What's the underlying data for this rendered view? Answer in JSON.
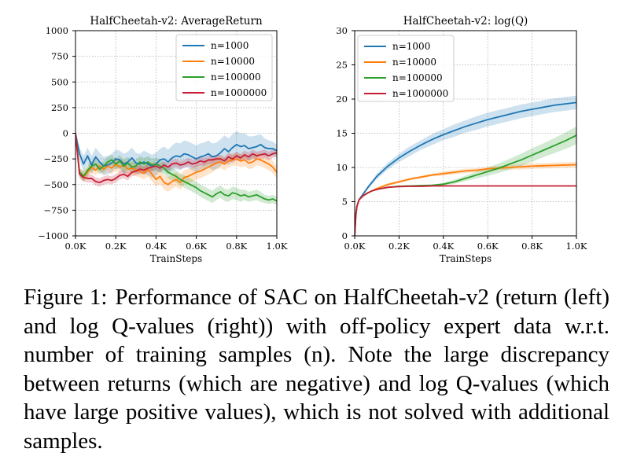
{
  "chart_data": [
    {
      "type": "line",
      "title": "HalfCheetah-v2: AverageReturn",
      "xlabel": "TrainSteps",
      "ylabel": "",
      "xlim": [
        0,
        1000
      ],
      "ylim": [
        -1000,
        1000
      ],
      "xticks": [
        0,
        200,
        400,
        600,
        800,
        1000
      ],
      "xtick_labels": [
        "0.0K",
        "0.2K",
        "0.4K",
        "0.6K",
        "0.8K",
        "1.0K"
      ],
      "yticks": [
        -1000,
        -750,
        -500,
        -250,
        0,
        250,
        500,
        750,
        1000
      ],
      "ytick_labels": [
        "−1000",
        "−750",
        "−500",
        "−250",
        "0",
        "250",
        "500",
        "750",
        "1000"
      ],
      "grid": true,
      "legend": "top-right",
      "series": [
        {
          "name": "n=1000",
          "color": "#1f77b4",
          "x": [
            0,
            20,
            40,
            60,
            80,
            100,
            120,
            140,
            160,
            180,
            200,
            220,
            240,
            260,
            280,
            300,
            320,
            340,
            360,
            380,
            400,
            420,
            440,
            460,
            480,
            500,
            520,
            540,
            560,
            580,
            600,
            620,
            640,
            660,
            680,
            700,
            720,
            740,
            760,
            780,
            800,
            820,
            840,
            860,
            880,
            900,
            920,
            940,
            960,
            980,
            1000
          ],
          "y": [
            0,
            -200,
            -300,
            -220,
            -310,
            -230,
            -280,
            -320,
            -310,
            -290,
            -250,
            -260,
            -300,
            -280,
            -240,
            -290,
            -300,
            -280,
            -300,
            -320,
            -300,
            -260,
            -250,
            -280,
            -240,
            -220,
            -230,
            -200,
            -210,
            -230,
            -250,
            -230,
            -220,
            -200,
            -230,
            -220,
            -190,
            -150,
            -180,
            -140,
            -110,
            -130,
            -120,
            -150,
            -140,
            -130,
            -110,
            -140,
            -150,
            -150,
            -170
          ],
          "band": [
            0,
            60,
            80,
            80,
            90,
            90,
            90,
            90,
            90,
            90,
            90,
            90,
            100,
            100,
            100,
            100,
            100,
            110,
            110,
            110,
            110,
            110,
            120,
            120,
            120,
            130,
            130,
            130,
            130,
            130,
            130,
            130,
            130,
            130,
            130,
            130,
            130,
            130,
            130,
            130,
            130,
            130,
            120,
            120,
            110,
            110,
            100,
            90,
            80,
            70,
            60
          ]
        },
        {
          "name": "n=10000",
          "color": "#ff7f0e",
          "x": [
            0,
            20,
            40,
            60,
            80,
            100,
            120,
            140,
            160,
            180,
            200,
            220,
            240,
            260,
            280,
            300,
            320,
            340,
            360,
            380,
            400,
            420,
            440,
            460,
            480,
            500,
            520,
            540,
            560,
            580,
            600,
            620,
            640,
            660,
            680,
            700,
            720,
            740,
            760,
            780,
            800,
            820,
            840,
            860,
            880,
            900,
            920,
            940,
            960,
            980,
            1000
          ],
          "y": [
            0,
            -380,
            -420,
            -380,
            -330,
            -360,
            -320,
            -350,
            -320,
            -340,
            -300,
            -330,
            -310,
            -350,
            -340,
            -360,
            -370,
            -390,
            -350,
            -400,
            -450,
            -420,
            -480,
            -500,
            -470,
            -450,
            -480,
            -430,
            -420,
            -400,
            -380,
            -370,
            -350,
            -330,
            -310,
            -290,
            -280,
            -300,
            -270,
            -260,
            -250,
            -270,
            -260,
            -290,
            -280,
            -250,
            -260,
            -280,
            -300,
            -330,
            -380
          ],
          "band": [
            0,
            40,
            50,
            50,
            50,
            50,
            50,
            50,
            50,
            60,
            60,
            60,
            60,
            60,
            60,
            60,
            60,
            60,
            70,
            70,
            70,
            70,
            70,
            70,
            70,
            70,
            70,
            70,
            70,
            70,
            70,
            70,
            70,
            70,
            70,
            60,
            60,
            60,
            60,
            60,
            60,
            60,
            60,
            60,
            60,
            60,
            60,
            60,
            60,
            60,
            60
          ]
        },
        {
          "name": "n=100000",
          "color": "#2ca02c",
          "x": [
            0,
            20,
            40,
            60,
            80,
            100,
            120,
            140,
            160,
            180,
            200,
            220,
            240,
            260,
            280,
            300,
            320,
            340,
            360,
            380,
            400,
            420,
            440,
            460,
            480,
            500,
            520,
            540,
            560,
            580,
            600,
            620,
            640,
            660,
            680,
            700,
            720,
            740,
            760,
            780,
            800,
            820,
            840,
            860,
            880,
            900,
            920,
            940,
            960,
            980,
            1000
          ],
          "y": [
            0,
            -380,
            -420,
            -360,
            -320,
            -300,
            -350,
            -320,
            -280,
            -260,
            -300,
            -270,
            -320,
            -290,
            -330,
            -320,
            -280,
            -300,
            -280,
            -310,
            -300,
            -320,
            -340,
            -380,
            -400,
            -420,
            -450,
            -470,
            -490,
            -510,
            -530,
            -560,
            -580,
            -600,
            -620,
            -590,
            -570,
            -600,
            -610,
            -580,
            -590,
            -610,
            -600,
            -620,
            -610,
            -600,
            -620,
            -640,
            -650,
            -640,
            -660
          ],
          "band": [
            0,
            40,
            50,
            50,
            50,
            50,
            50,
            50,
            50,
            50,
            50,
            60,
            60,
            60,
            60,
            60,
            60,
            60,
            60,
            60,
            60,
            60,
            60,
            60,
            60,
            60,
            60,
            60,
            60,
            60,
            60,
            60,
            60,
            60,
            60,
            60,
            60,
            60,
            60,
            60,
            60,
            60,
            50,
            50,
            50,
            50,
            50,
            40,
            40,
            40,
            40
          ]
        },
        {
          "name": "n=1000000",
          "color": "#c81d34",
          "x": [
            0,
            20,
            40,
            60,
            80,
            100,
            120,
            140,
            160,
            180,
            200,
            220,
            240,
            260,
            280,
            300,
            320,
            340,
            360,
            380,
            400,
            420,
            440,
            460,
            480,
            500,
            520,
            540,
            560,
            580,
            600,
            620,
            640,
            660,
            680,
            700,
            720,
            740,
            760,
            780,
            800,
            820,
            840,
            860,
            880,
            900,
            920,
            940,
            960,
            980,
            1000
          ],
          "y": [
            0,
            -400,
            -430,
            -440,
            -440,
            -470,
            -480,
            -460,
            -450,
            -460,
            -440,
            -410,
            -400,
            -420,
            -380,
            -370,
            -350,
            -360,
            -340,
            -330,
            -320,
            -340,
            -310,
            -330,
            -300,
            -290,
            -310,
            -300,
            -280,
            -300,
            -290,
            -270,
            -280,
            -260,
            -260,
            -250,
            -250,
            -270,
            -230,
            -250,
            -220,
            -240,
            -210,
            -230,
            -200,
            -220,
            -210,
            -200,
            -220,
            -200,
            -190
          ],
          "band": [
            0,
            40,
            40,
            40,
            40,
            40,
            40,
            40,
            40,
            40,
            40,
            40,
            40,
            40,
            40,
            40,
            40,
            40,
            40,
            40,
            40,
            40,
            40,
            40,
            40,
            40,
            40,
            40,
            40,
            40,
            40,
            40,
            40,
            40,
            40,
            40,
            40,
            40,
            40,
            40,
            40,
            40,
            40,
            40,
            40,
            40,
            40,
            40,
            40,
            40,
            40
          ]
        }
      ]
    },
    {
      "type": "line",
      "title": "HalfCheetah-v2: log(Q)",
      "xlabel": "TrainSteps",
      "ylabel": "",
      "xlim": [
        0,
        1000
      ],
      "ylim": [
        0,
        30
      ],
      "xticks": [
        0,
        200,
        400,
        600,
        800,
        1000
      ],
      "xtick_labels": [
        "0.0K",
        "0.2K",
        "0.4K",
        "0.6K",
        "0.8K",
        "1.0K"
      ],
      "yticks": [
        0,
        5,
        10,
        15,
        20,
        25,
        30
      ],
      "ytick_labels": [
        "0",
        "5",
        "10",
        "15",
        "20",
        "25",
        "30"
      ],
      "grid": true,
      "legend": "top-left",
      "series": [
        {
          "name": "n=1000",
          "color": "#1f77b4",
          "x": [
            0,
            5,
            10,
            20,
            40,
            60,
            80,
            100,
            150,
            200,
            250,
            300,
            350,
            400,
            450,
            500,
            550,
            600,
            650,
            700,
            750,
            800,
            850,
            900,
            950,
            1000
          ],
          "y": [
            0,
            3,
            4.3,
            5.3,
            6.2,
            7.1,
            7.9,
            8.7,
            10.2,
            11.4,
            12.4,
            13.3,
            14.1,
            14.8,
            15.4,
            16.0,
            16.5,
            17.0,
            17.4,
            17.8,
            18.2,
            18.5,
            18.8,
            19.1,
            19.3,
            19.5
          ],
          "band": [
            0,
            0.1,
            0.1,
            0.2,
            0.2,
            0.3,
            0.3,
            0.4,
            0.5,
            0.6,
            0.7,
            0.7,
            0.8,
            0.8,
            0.9,
            0.9,
            1.0,
            1.0,
            1.0,
            1.0,
            1.0,
            1.0,
            1.0,
            1.0,
            1.0,
            1.0
          ]
        },
        {
          "name": "n=10000",
          "color": "#ff7f0e",
          "x": [
            0,
            5,
            10,
            20,
            40,
            60,
            80,
            100,
            150,
            200,
            250,
            300,
            350,
            400,
            450,
            500,
            550,
            600,
            650,
            700,
            750,
            800,
            850,
            900,
            950,
            1000
          ],
          "y": [
            0,
            3,
            4.3,
            5.3,
            5.9,
            6.3,
            6.6,
            6.9,
            7.5,
            7.9,
            8.3,
            8.6,
            8.9,
            9.1,
            9.3,
            9.5,
            9.6,
            9.8,
            9.9,
            10.0,
            10.1,
            10.2,
            10.25,
            10.3,
            10.35,
            10.4
          ],
          "band": [
            0,
            0.1,
            0.1,
            0.1,
            0.1,
            0.1,
            0.1,
            0.2,
            0.2,
            0.2,
            0.2,
            0.2,
            0.2,
            0.3,
            0.3,
            0.3,
            0.3,
            0.3,
            0.3,
            0.3,
            0.4,
            0.4,
            0.4,
            0.4,
            0.4,
            0.4
          ]
        },
        {
          "name": "n=100000",
          "color": "#2ca02c",
          "x": [
            0,
            5,
            10,
            20,
            40,
            60,
            80,
            100,
            150,
            200,
            250,
            300,
            350,
            400,
            450,
            500,
            550,
            600,
            650,
            700,
            750,
            800,
            850,
            900,
            950,
            1000
          ],
          "y": [
            0,
            3,
            4.3,
            5.3,
            5.9,
            6.3,
            6.6,
            6.8,
            7.1,
            7.25,
            7.3,
            7.35,
            7.4,
            7.55,
            7.9,
            8.4,
            8.9,
            9.4,
            9.9,
            10.5,
            11.1,
            11.8,
            12.5,
            13.2,
            13.9,
            14.7
          ],
          "band": [
            0,
            0.1,
            0.1,
            0.1,
            0.1,
            0.1,
            0.1,
            0.1,
            0.1,
            0.1,
            0.1,
            0.1,
            0.1,
            0.2,
            0.3,
            0.4,
            0.5,
            0.6,
            0.7,
            0.8,
            0.9,
            1.0,
            1.0,
            1.1,
            1.2,
            1.3
          ]
        },
        {
          "name": "n=1000000",
          "color": "#c81d34",
          "x": [
            0,
            5,
            10,
            20,
            40,
            60,
            80,
            100,
            150,
            200,
            250,
            300,
            350,
            400,
            450,
            500,
            550,
            600,
            650,
            700,
            750,
            800,
            850,
            900,
            950,
            1000
          ],
          "y": [
            0,
            3,
            4.3,
            5.3,
            5.9,
            6.3,
            6.6,
            6.8,
            7.1,
            7.2,
            7.25,
            7.25,
            7.3,
            7.3,
            7.3,
            7.3,
            7.3,
            7.3,
            7.3,
            7.3,
            7.3,
            7.3,
            7.3,
            7.3,
            7.3,
            7.3
          ],
          "band": [
            0,
            0.05,
            0.05,
            0.05,
            0.05,
            0.05,
            0.05,
            0.05,
            0.05,
            0.05,
            0.05,
            0.05,
            0.05,
            0.05,
            0.05,
            0.05,
            0.05,
            0.05,
            0.05,
            0.05,
            0.05,
            0.05,
            0.05,
            0.05,
            0.05,
            0.05
          ]
        }
      ]
    }
  ],
  "caption": {
    "lead": "Figure 1:",
    "text": "Performance of SAC on HalfCheetah-v2 (return (left) and log Q-values (right)) with off-policy expert data w.r.t. number of training samples (n). Note the large discrepancy between returns (which are nega­tive) and log Q-values (which have large positive values), which is not solved with additional samples."
  }
}
